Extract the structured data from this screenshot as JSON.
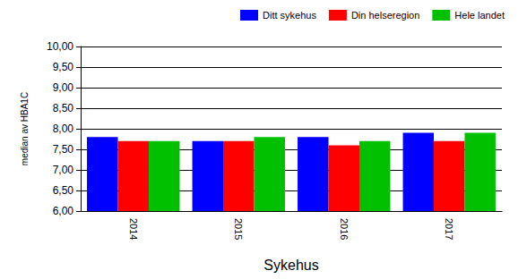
{
  "chart_data": {
    "type": "bar",
    "x_label": "Sykehus",
    "y_label": "median av HBA1C",
    "categories": [
      "2014",
      "2015",
      "2016",
      "2017"
    ],
    "series": [
      {
        "name": "Ditt sykehus",
        "color": "#0000ff",
        "values": [
          7.8,
          7.7,
          7.8,
          7.9
        ]
      },
      {
        "name": "Din helseregion",
        "color": "#ff0000",
        "values": [
          7.7,
          7.7,
          7.6,
          7.7
        ]
      },
      {
        "name": "Hele landet",
        "color": "#00c000",
        "values": [
          7.7,
          7.8,
          7.7,
          7.9
        ]
      }
    ],
    "ylim": [
      6,
      10
    ],
    "yticks": [
      {
        "value": 6,
        "label": "6,00"
      },
      {
        "value": 6.5,
        "label": "6,50"
      },
      {
        "value": 7,
        "label": "7,00"
      },
      {
        "value": 7.5,
        "label": "7,50"
      },
      {
        "value": 8,
        "label": "8,00"
      },
      {
        "value": 8.5,
        "label": "8,50"
      },
      {
        "value": 9,
        "label": "9,00"
      },
      {
        "value": 9.5,
        "label": "9,50"
      },
      {
        "value": 10,
        "label": "10,00"
      }
    ],
    "grid": true,
    "legend": "top-right"
  }
}
